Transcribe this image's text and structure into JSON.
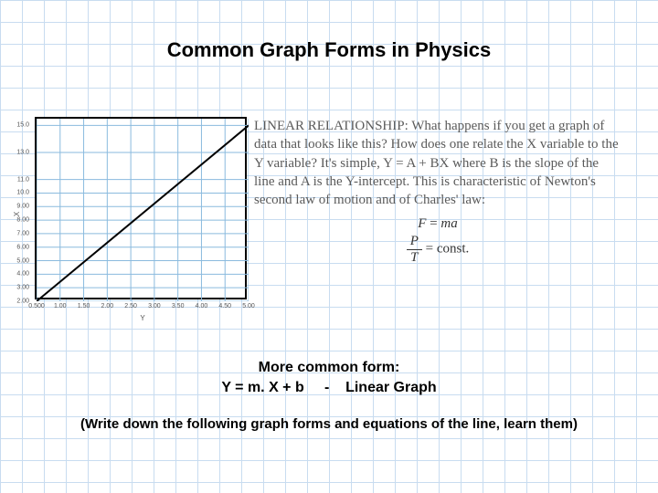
{
  "title": "Common Graph Forms in Physics",
  "chart": {
    "type": "line",
    "xlabel": "Y",
    "ylabel": "X",
    "xlim": [
      0.5,
      5.0
    ],
    "ylim": [
      2.0,
      15.5
    ],
    "xticks": [
      0.5,
      1.0,
      1.5,
      2.0,
      2.5,
      3.0,
      3.5,
      4.0,
      4.5,
      5.0
    ],
    "yticks": [
      2.0,
      3.0,
      4.0,
      5.0,
      6.0,
      7.0,
      8.0,
      9.0,
      10.0,
      11.0,
      13.0,
      15.0
    ],
    "xtick_labels": [
      "0.500",
      "1.00",
      "1.50",
      "2.00",
      "2.50",
      "3.00",
      "3.50",
      "4.00",
      "4.50",
      "5.00"
    ],
    "ytick_labels": [
      "2.00",
      "3.00",
      "4.00",
      "5.00",
      "6.00",
      "7.00",
      "8.00",
      "9.00",
      "10.0",
      "11.0",
      "13.0",
      "15.0"
    ],
    "line_points": [
      {
        "x": 0.5,
        "y": 2.0
      },
      {
        "x": 5.0,
        "y": 15.0
      }
    ],
    "border_color": "#000000",
    "grid_color": "#8abade",
    "line_color": "#000000",
    "background_color": "#ffffff",
    "line_width": 2,
    "tick_fontsize": 7,
    "label_fontsize": 8
  },
  "description": "LINEAR RELATIONSHIP: What happens if you get a graph of data that looks like this? How does one relate the X variable to the Y variable? It's simple, Y = A + BX where B is the slope of the line and A is the Y-intercept. This is characteristic of Newton's second law of motion and of Charles' law:",
  "eq1_lhs": "F",
  "eq1_op": "=",
  "eq1_rhs": "ma",
  "eq2_num": "P",
  "eq2_den": "T",
  "eq2_op": "=",
  "eq2_rhs": "const.",
  "common_form_line1": "More common form:",
  "common_form_line2": "Y = m. X + b     -    Linear Graph",
  "footnote": "(Write down the following graph forms and equations of the line, learn them)",
  "colors": {
    "page_grid": "#c8dcf0",
    "text_title": "#000000",
    "text_body": "#5a5a5a"
  }
}
